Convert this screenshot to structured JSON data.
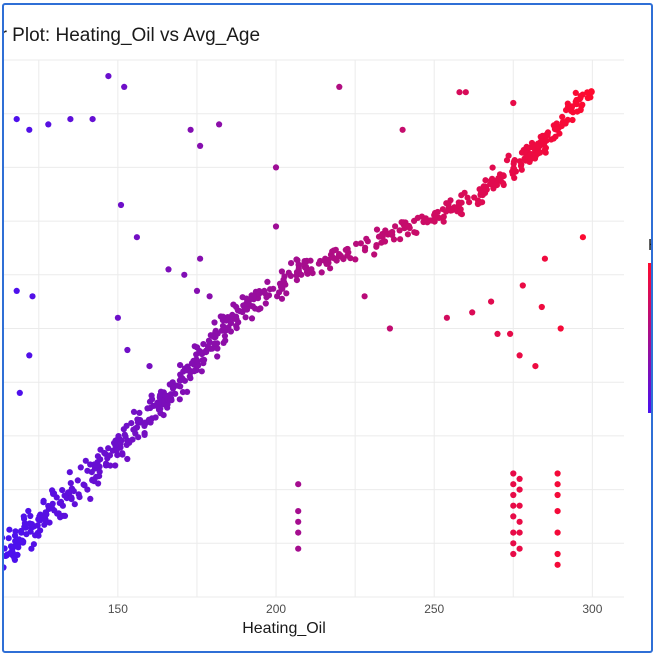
{
  "chart_data": {
    "type": "scatter",
    "title": "er Plot: Heating_Oil vs Avg_Age",
    "xlabel": "Heating_Oil",
    "ylabel": "",
    "x_ticks": [
      "150",
      "200",
      "250",
      "300"
    ],
    "xlim": [
      114,
      310
    ],
    "ylim": [
      0,
      100
    ],
    "grid": true,
    "legend": {
      "title": "H",
      "placement": "right",
      "type": "color-gradient"
    },
    "colors": {
      "low": "#4a10f0",
      "high": "#ff0a2e",
      "grid": "#ebebeb",
      "frame": "#2f6fd6"
    },
    "series": [
      {
        "trend_segments": [
          {
            "x0": 114,
            "y0": 8,
            "x1": 140,
            "y1": 22,
            "spread": 3.2,
            "n": 110
          },
          {
            "x0": 140,
            "y0": 22,
            "x1": 165,
            "y1": 37,
            "spread": 2.6,
            "n": 110
          },
          {
            "x0": 165,
            "y0": 37,
            "x1": 186,
            "y1": 52,
            "spread": 2.4,
            "n": 100
          },
          {
            "x0": 186,
            "y0": 52,
            "x1": 210,
            "y1": 62,
            "spread": 2.0,
            "n": 80
          },
          {
            "x0": 210,
            "y0": 61,
            "x1": 262,
            "y1": 74,
            "spread": 1.5,
            "n": 110
          },
          {
            "x0": 262,
            "y0": 74,
            "x1": 282,
            "y1": 83,
            "spread": 1.6,
            "n": 70
          },
          {
            "x0": 282,
            "y0": 83,
            "x1": 300,
            "y1": 95,
            "spread": 1.6,
            "n": 70
          }
        ],
        "outliers": [
          [
            147,
            97
          ],
          [
            152,
            95
          ],
          [
            118,
            89
          ],
          [
            122,
            87
          ],
          [
            128,
            88
          ],
          [
            135,
            89
          ],
          [
            142,
            89
          ],
          [
            173,
            87
          ],
          [
            182,
            88
          ],
          [
            176,
            84
          ],
          [
            200,
            80
          ],
          [
            220,
            95
          ],
          [
            240,
            87
          ],
          [
            258,
            94
          ],
          [
            260,
            94
          ],
          [
            275,
            92
          ],
          [
            151,
            73
          ],
          [
            156,
            67
          ],
          [
            166,
            61
          ],
          [
            176,
            63
          ],
          [
            200,
            69
          ],
          [
            236,
            50
          ],
          [
            254,
            52
          ],
          [
            262,
            53
          ],
          [
            268,
            55
          ],
          [
            278,
            58
          ],
          [
            285,
            63
          ],
          [
            297,
            67
          ],
          [
            118,
            57
          ],
          [
            122,
            45
          ],
          [
            123,
            56
          ],
          [
            119,
            38
          ],
          [
            171,
            60
          ],
          [
            175,
            57
          ],
          [
            179,
            56
          ],
          [
            150,
            52
          ],
          [
            153,
            46
          ],
          [
            160,
            43
          ],
          [
            208,
            60
          ],
          [
            228,
            56
          ],
          [
            270,
            49
          ],
          [
            274,
            49
          ],
          [
            277,
            45
          ],
          [
            282,
            43
          ],
          [
            290,
            50
          ],
          [
            284,
            54
          ]
        ],
        "clusters": [
          {
            "x": 207,
            "ys": [
              9,
              12,
              14,
              16,
              21
            ]
          },
          {
            "x": 275,
            "ys": [
              8,
              10,
              12,
              15,
              17,
              19,
              21,
              23
            ]
          },
          {
            "x": 277,
            "ys": [
              9,
              12,
              14,
              17,
              20,
              22
            ]
          },
          {
            "x": 289,
            "ys": [
              6,
              8,
              12,
              16,
              19,
              21,
              23
            ]
          }
        ]
      }
    ]
  }
}
